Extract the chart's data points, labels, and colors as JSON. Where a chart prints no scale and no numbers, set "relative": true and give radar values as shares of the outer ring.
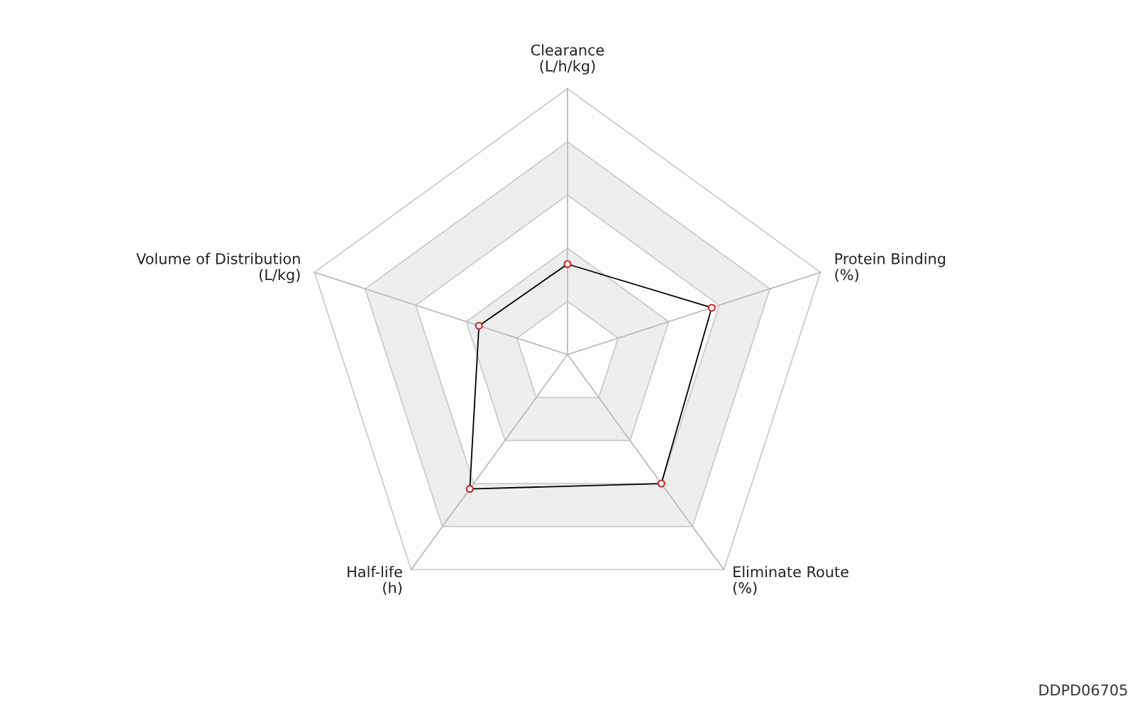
{
  "chart_data": {
    "type": "radar",
    "relative": true,
    "grid": true,
    "marker": "circle",
    "categories": [
      "Clearance\n(L/h/kg)",
      "Protein Binding\n(%)",
      "Eliminate Route\n(%)",
      "Half-life\n(h)",
      "Volume of Distribution\n(L/kg)"
    ],
    "series": [
      {
        "color": "#000000",
        "values": [
          0.34,
          0.57,
          0.6,
          0.625,
          0.35
        ]
      }
    ],
    "annotations": [
      "DDPD06705"
    ]
  }
}
